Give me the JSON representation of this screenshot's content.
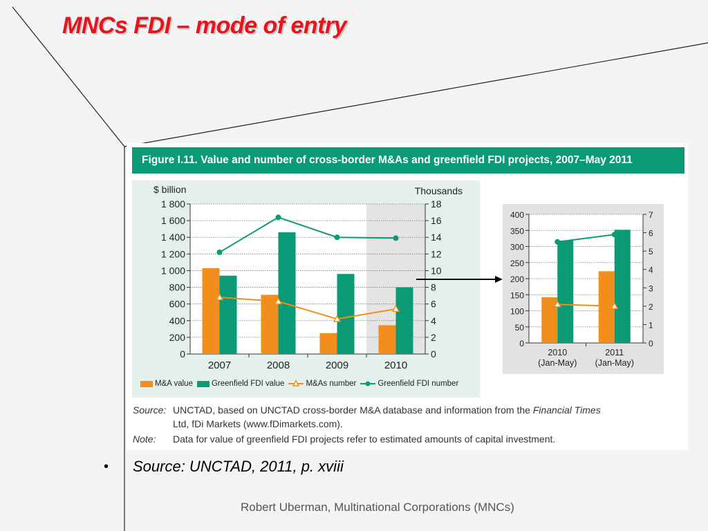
{
  "slide": {
    "title": "MNCs FDI – mode of  entry",
    "bullet_symbol": "•",
    "source_text": "Source: UNCTAD, 2011, p. xviii",
    "footer": "Robert Uberman, Multinational Corporations (MNCs)"
  },
  "figure": {
    "banner": "Figure I.11.  Value and number of cross-border M&As and greenfield FDI projects, 2007–May 2011",
    "legend": [
      {
        "label": "M&A value",
        "kind": "bar",
        "color": "#f18e1c"
      },
      {
        "label": "Greenfield FDI value",
        "kind": "bar",
        "color": "#0a9a76"
      },
      {
        "label": "M&As number",
        "kind": "line",
        "marker": "triangle",
        "color": "#f18e1c"
      },
      {
        "label": "Greenfield FDI number",
        "kind": "line",
        "marker": "circle",
        "color": "#0a9a76"
      }
    ],
    "notes": [
      {
        "label": "Source:",
        "text_1": "UNCTAD, based on UNCTAD cross-border M&A database and information from the ",
        "text_italic": "Financial Times",
        "text_2": "Ltd, fDi Markets (www.fDimarkets.com)."
      },
      {
        "label": "Note:",
        "text": "Data for value of greenfield FDI projects refer to estimated amounts of capital investment."
      }
    ]
  },
  "chart_data": [
    {
      "type": "bar",
      "ylabel": "$ billion",
      "y2label": "Thousands",
      "categories": [
        "2007",
        "2008",
        "2009",
        "2010"
      ],
      "ylim": [
        0,
        1800
      ],
      "yticks": [
        "0",
        "200",
        "400",
        "600",
        "800",
        "1 000",
        "1 200",
        "1 400",
        "1 600",
        "1 800"
      ],
      "y2lim": [
        0,
        18
      ],
      "y2ticks": [
        "0",
        "2",
        "4",
        "6",
        "8",
        "10",
        "12",
        "14",
        "16",
        "18"
      ],
      "shaded_category": "2010",
      "series": [
        {
          "name": "M&A value",
          "type": "bar",
          "axis": "left",
          "color": "#f18e1c",
          "values": [
            1030,
            710,
            250,
            345
          ]
        },
        {
          "name": "Greenfield FDI value",
          "type": "bar",
          "axis": "left",
          "color": "#0a9a76",
          "values": [
            940,
            1460,
            960,
            800
          ]
        },
        {
          "name": "M&As number",
          "type": "line",
          "axis": "right",
          "marker": "triangle",
          "color": "#f18e1c",
          "values": [
            6.8,
            6.3,
            4.2,
            5.4
          ]
        },
        {
          "name": "Greenfield FDI number",
          "type": "line",
          "axis": "right",
          "marker": "circle",
          "color": "#0a9a76",
          "values": [
            12.2,
            16.4,
            14.0,
            13.9
          ]
        }
      ]
    },
    {
      "type": "bar",
      "categories": [
        "2010\n(Jan-May)",
        "2011\n(Jan-May)"
      ],
      "ylim": [
        0,
        400
      ],
      "yticks": [
        "0",
        "50",
        "100",
        "150",
        "200",
        "250",
        "300",
        "350",
        "400"
      ],
      "y2lim": [
        0,
        7
      ],
      "y2ticks": [
        "0",
        "1",
        "2",
        "3",
        "4",
        "5",
        "6",
        "7"
      ],
      "series": [
        {
          "name": "M&A value",
          "type": "bar",
          "axis": "left",
          "color": "#f18e1c",
          "values": [
            142,
            223
          ]
        },
        {
          "name": "Greenfield FDI value",
          "type": "bar",
          "axis": "left",
          "color": "#0a9a76",
          "values": [
            318,
            352
          ]
        },
        {
          "name": "M&As number",
          "type": "line",
          "axis": "right",
          "marker": "triangle",
          "color": "#f18e1c",
          "values": [
            2.1,
            2.0
          ]
        },
        {
          "name": "Greenfield FDI number",
          "type": "line",
          "axis": "right",
          "marker": "circle",
          "color": "#0a9a76",
          "values": [
            5.5,
            5.9
          ]
        }
      ]
    }
  ]
}
